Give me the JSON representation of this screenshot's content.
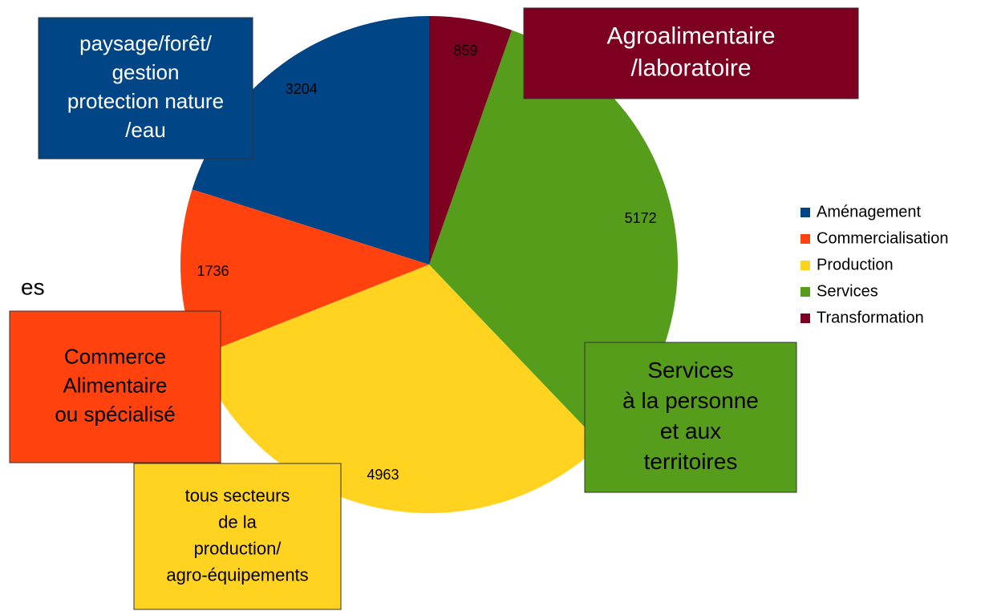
{
  "chart_data": {
    "type": "pie",
    "direction": "counterclockwise",
    "legend": "right",
    "categories": [
      "Aménagement",
      "Commercialisation",
      "Production",
      "Services",
      "Transformation"
    ],
    "values": [
      3204,
      1736,
      4963,
      5172,
      859
    ],
    "colors": [
      "#004586",
      "#ff420e",
      "#ffd320",
      "#579d1c",
      "#7e0021"
    ],
    "callouts": [
      {
        "lines": [
          "paysage/forêt/",
          "gestion",
          "protection nature",
          "/eau"
        ],
        "text_color": "#ffffff"
      },
      {
        "lines": [
          "Commerce",
          "Alimentaire",
          "ou spécialisé"
        ],
        "text_color": "#000000"
      },
      {
        "lines": [
          "tous secteurs",
          "de la",
          "production/",
          "agro-équipements"
        ],
        "text_color": "#000000"
      },
      {
        "lines": [
          "Services",
          " à la personne",
          "et aux",
          "territoires"
        ],
        "text_color": "#000000"
      },
      {
        "lines": [
          "Agroalimentaire",
          "/laboratoire"
        ],
        "text_color": "#ffffff"
      }
    ],
    "annotation": "es"
  }
}
